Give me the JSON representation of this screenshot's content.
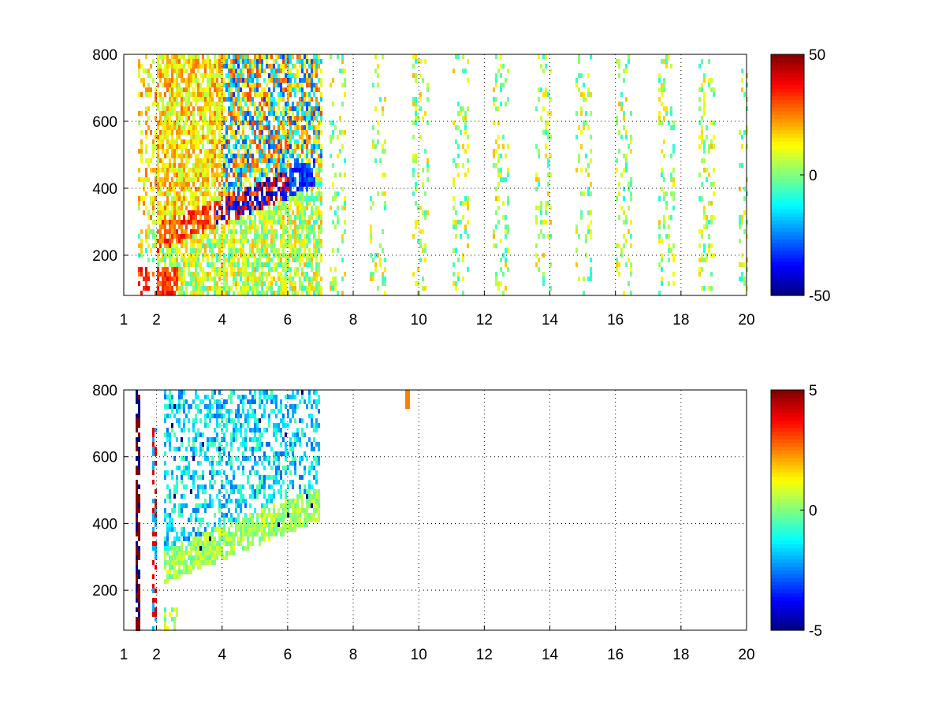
{
  "chart_data": [
    {
      "type": "heatmap",
      "title": "",
      "xlabel": "",
      "ylabel": "",
      "xlim": [
        1,
        20
      ],
      "ylim": [
        80,
        800
      ],
      "x_ticks": [
        1,
        2,
        4,
        6,
        8,
        10,
        12,
        14,
        16,
        18,
        20
      ],
      "y_ticks": [
        200,
        400,
        600,
        800
      ],
      "grid": true,
      "colormap": "jet",
      "colorbar": {
        "min": -50,
        "max": 50,
        "ticks": [
          -50,
          0,
          50
        ]
      },
      "colors": {
        "jet_low": "#00008f",
        "jet_mid": "#80ff80",
        "jet_high": "#800000"
      },
      "features": [
        {
          "region": "ridge rising from (2, 260) to (6.7, 450)",
          "value_range": [
            -50,
            50
          ]
        },
        {
          "region": "x 1.5-7, y 80-800",
          "dense": true
        },
        {
          "region": "x 7-20, y 80-800",
          "sparse": true,
          "value_range": [
            -5,
            15
          ]
        }
      ]
    },
    {
      "type": "heatmap",
      "title": "",
      "xlabel": "",
      "ylabel": "",
      "xlim": [
        1,
        20
      ],
      "ylim": [
        80,
        800
      ],
      "x_ticks": [
        1,
        2,
        4,
        6,
        8,
        10,
        12,
        14,
        16,
        18,
        20
      ],
      "y_ticks": [
        200,
        400,
        600,
        800
      ],
      "grid": true,
      "colormap": "jet",
      "colorbar": {
        "min": -5,
        "max": 5,
        "ticks": [
          -5,
          0,
          5
        ]
      },
      "colors": {
        "jet_low": "#00008f",
        "jet_mid": "#80ff80",
        "jet_high": "#800000"
      },
      "features": [
        {
          "region": "x 2.2-6.9, y 100-780",
          "dense": true,
          "value_range": [
            -3,
            1
          ]
        },
        {
          "region": "x 1.4 and 1.9 vertical streaks",
          "value_range": [
            -5,
            5
          ]
        },
        {
          "region": "x 9.6, y 760-800",
          "value_range": [
            2,
            3
          ]
        }
      ]
    }
  ]
}
